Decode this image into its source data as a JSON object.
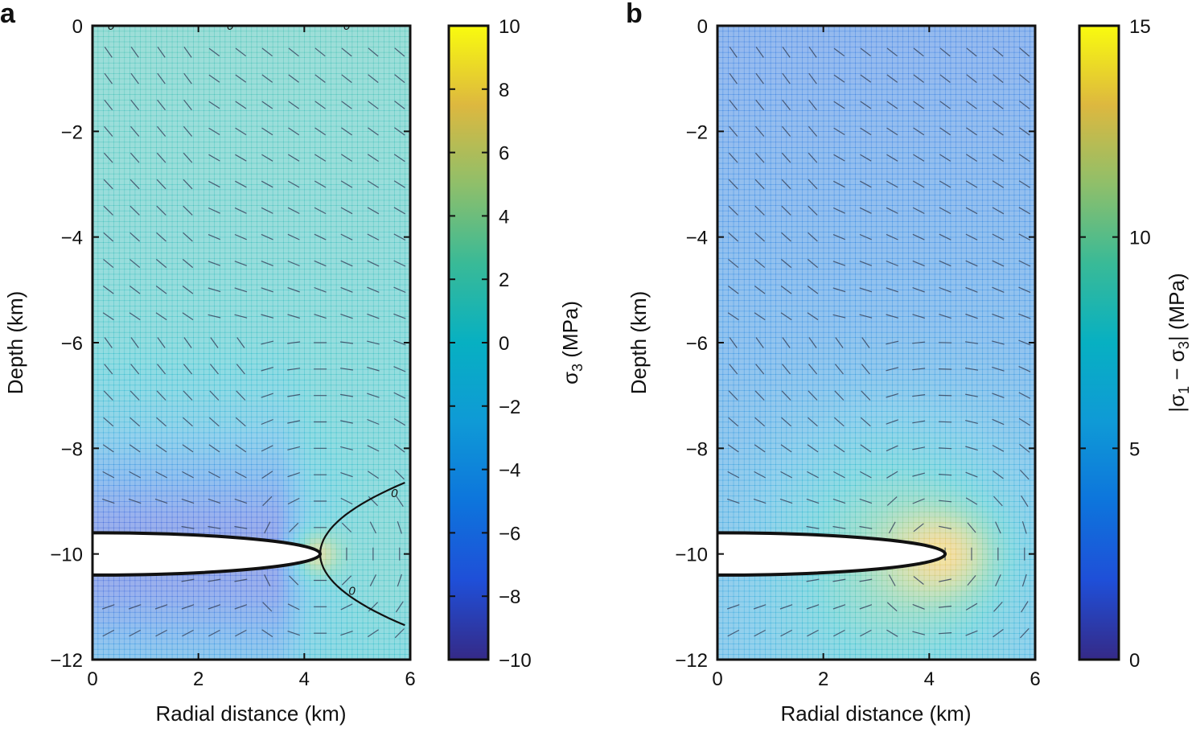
{
  "chart_data": [
    {
      "type": "heatmap",
      "panel_label": "a",
      "xlabel": "Radial distance (km)",
      "ylabel": "Depth (km)",
      "xlim": [
        0,
        6
      ],
      "ylim": [
        -12,
        0
      ],
      "xticks": [
        0,
        2,
        4,
        6
      ],
      "yticks": [
        0,
        -2,
        -4,
        -6,
        -8,
        -10,
        -12
      ],
      "xtick_labels": [
        "0",
        "2",
        "4",
        "6"
      ],
      "ytick_labels": [
        "0",
        "−2",
        "−4",
        "−6",
        "−8",
        "−10",
        "−12"
      ],
      "colorbar": {
        "label_main": "σ",
        "label_sub": "3",
        "label_unit": " (MPa)",
        "range": [
          -10,
          10
        ],
        "ticks": [
          10,
          8,
          6,
          4,
          2,
          0,
          -2,
          -4,
          -6,
          -8,
          -10
        ],
        "tick_labels": [
          "10",
          "8",
          "6",
          "4",
          "2",
          "0",
          "−2",
          "−4",
          "−6",
          "−8",
          "−10"
        ]
      },
      "field": {
        "background": 1.5,
        "near_chamber": -8,
        "tip_peak": 6,
        "tip_location": [
          4.3,
          -10
        ]
      },
      "chamber": {
        "center": [
          0,
          -10
        ],
        "semi_axis_x": 4.3,
        "semi_axis_y": 0.4
      },
      "zero_contours": true,
      "zero_contour_labels": [
        "0",
        "0",
        "0",
        "0",
        "0"
      ]
    },
    {
      "type": "heatmap",
      "panel_label": "b",
      "xlabel": "Radial distance (km)",
      "ylabel": "Depth (km)",
      "xlim": [
        0,
        6
      ],
      "ylim": [
        -12,
        0
      ],
      "xticks": [
        0,
        2,
        4,
        6
      ],
      "yticks": [
        0,
        -2,
        -4,
        -6,
        -8,
        -10,
        -12
      ],
      "xtick_labels": [
        "0",
        "2",
        "4",
        "6"
      ],
      "ytick_labels": [
        "0",
        "−2",
        "−4",
        "−6",
        "−8",
        "−10",
        "−12"
      ],
      "colorbar": {
        "label_main": "|σ",
        "label_sub1": "1",
        "label_mid": " − σ",
        "label_sub2": "3",
        "label_unit": "| (MPa)",
        "range": [
          0,
          15
        ],
        "ticks": [
          15,
          10,
          5,
          0
        ],
        "tick_labels": [
          "15",
          "10",
          "5",
          "0"
        ]
      },
      "field": {
        "background": 3,
        "tip_peak": 13.5,
        "tip_location": [
          4.2,
          -10
        ]
      },
      "chamber": {
        "center": [
          0,
          -10
        ],
        "semi_axis_x": 4.3,
        "semi_axis_y": 0.4
      },
      "zero_contours": false
    }
  ]
}
